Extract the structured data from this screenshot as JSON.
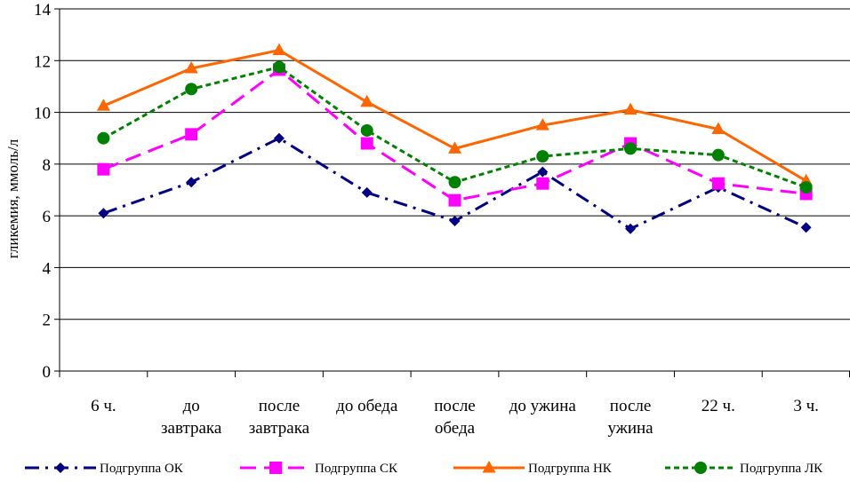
{
  "chart_data": {
    "type": "line",
    "title": "",
    "xlabel": "",
    "ylabel": "гликемия, ммоль/л",
    "ylim": [
      0,
      14
    ],
    "yticks": [
      0,
      2,
      4,
      6,
      8,
      10,
      12,
      14
    ],
    "grid": "horizontal",
    "legend_position": "bottom",
    "categories": [
      [
        "6 ч."
      ],
      [
        "до",
        "завтрака"
      ],
      [
        "после",
        "завтрака"
      ],
      [
        "до обеда"
      ],
      [
        "после",
        "обеда"
      ],
      [
        "до ужина"
      ],
      [
        "после",
        "ужина"
      ],
      [
        "22 ч."
      ],
      [
        "3 ч."
      ]
    ],
    "series": [
      {
        "name": "Подгруппа ОК",
        "color": "#000080",
        "marker": "diamond",
        "dash": "dashdot",
        "values": [
          6.1,
          7.3,
          9.0,
          6.9,
          5.8,
          7.7,
          5.5,
          7.1,
          5.55
        ]
      },
      {
        "name": "Подгруппа СК",
        "color": "#FF00FF",
        "marker": "square",
        "dash": "longdash",
        "values": [
          7.8,
          9.15,
          11.65,
          8.8,
          6.6,
          7.25,
          8.8,
          7.25,
          6.85
        ]
      },
      {
        "name": "Подгруппа НК",
        "color": "#FF6600",
        "marker": "triangle",
        "dash": "solid",
        "values": [
          10.25,
          11.7,
          12.4,
          10.4,
          8.6,
          9.5,
          10.1,
          9.35,
          7.35
        ]
      },
      {
        "name": "Подгруппа ЛК",
        "color": "#008000",
        "marker": "circle",
        "dash": "dotted",
        "values": [
          9.0,
          10.9,
          11.75,
          9.3,
          7.3,
          8.3,
          8.6,
          8.35,
          7.1
        ]
      }
    ]
  }
}
